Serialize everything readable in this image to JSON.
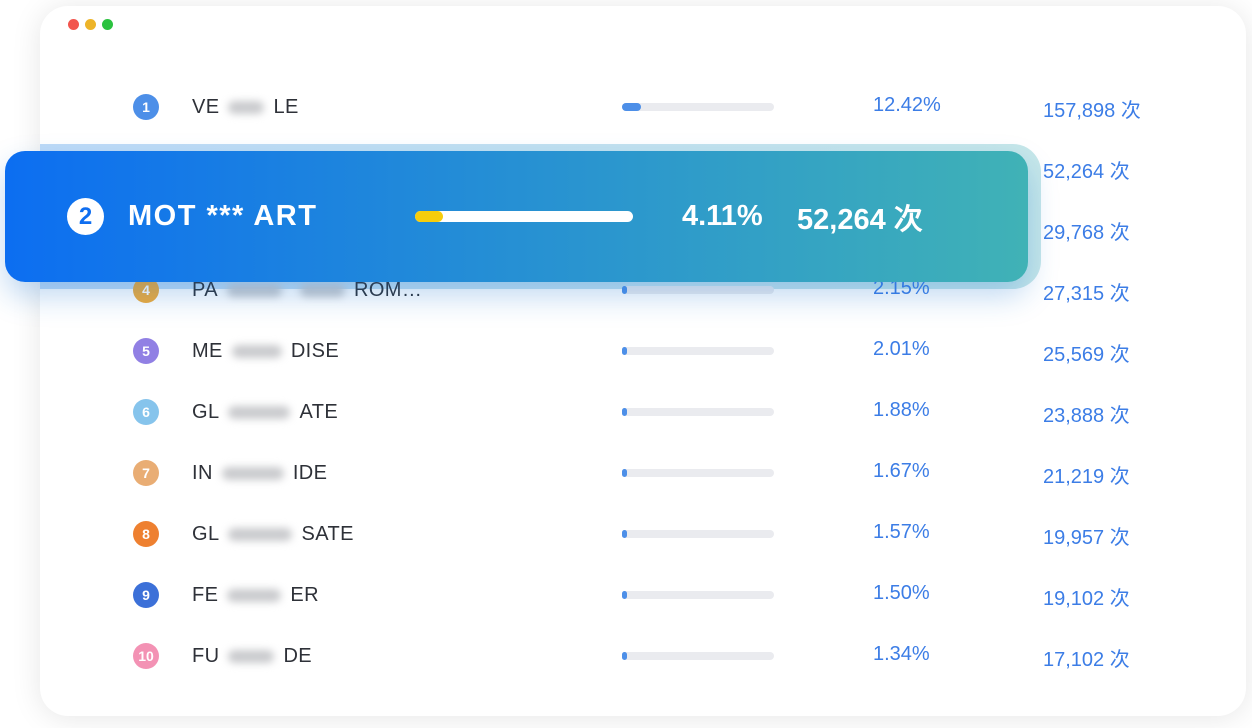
{
  "window": {
    "controls": [
      {
        "name": "close",
        "color": "#F2554D"
      },
      {
        "name": "minimize",
        "color": "#EDB429"
      },
      {
        "name": "maximize",
        "color": "#2BC23F"
      }
    ]
  },
  "list": {
    "rows": [
      {
        "rank": "1",
        "badge_color": "#4D8FE8",
        "label_parts": [
          {
            "t": "VE"
          },
          {
            "b": 36
          },
          {
            "t": "LE"
          }
        ],
        "percent": "12.42%",
        "count": "157,898 次",
        "bar_pct": 12.42
      },
      {
        "rank": "",
        "badge_color": "",
        "label_parts": [],
        "percent": "",
        "count": "52,264 次",
        "bar_pct": 0
      },
      {
        "rank": "",
        "badge_color": "",
        "label_parts": [],
        "percent": "",
        "count": "29,768 次",
        "bar_pct": 0
      },
      {
        "rank": "4",
        "badge_color": "#F0AA38",
        "label_parts": [
          {
            "t": "PA"
          },
          {
            "b": 55
          },
          {
            "b": 45
          },
          {
            "t": "ROM…"
          }
        ],
        "percent": "2.15%",
        "count": "27,315 次",
        "bar_pct": 2.15
      },
      {
        "rank": "5",
        "badge_color": "#9180E4",
        "label_parts": [
          {
            "t": "ME"
          },
          {
            "b": 50
          },
          {
            "t": "DISE"
          }
        ],
        "percent": "2.01%",
        "count": "25,569 次",
        "bar_pct": 2.01
      },
      {
        "rank": "6",
        "badge_color": "#86C4EC",
        "label_parts": [
          {
            "t": "GL"
          },
          {
            "b": 62
          },
          {
            "t": "ATE"
          }
        ],
        "percent": "1.88%",
        "count": "23,888 次",
        "bar_pct": 1.88
      },
      {
        "rank": "7",
        "badge_color": "#E9AD74",
        "label_parts": [
          {
            "t": "IN"
          },
          {
            "b": 62
          },
          {
            "t": "IDE"
          }
        ],
        "percent": "1.67%",
        "count": "21,219 次",
        "bar_pct": 1.67
      },
      {
        "rank": "8",
        "badge_color": "#EE8030",
        "label_parts": [
          {
            "t": "GL"
          },
          {
            "b": 64
          },
          {
            "t": "SATE"
          }
        ],
        "percent": "1.57%",
        "count": "19,957 次",
        "bar_pct": 1.57
      },
      {
        "rank": "9",
        "badge_color": "#3C70D8",
        "label_parts": [
          {
            "t": "FE"
          },
          {
            "b": 54
          },
          {
            "t": "ER"
          }
        ],
        "percent": "1.50%",
        "count": "19,102 次",
        "bar_pct": 1.5
      },
      {
        "rank": "10",
        "badge_color": "#F392B4",
        "label_parts": [
          {
            "t": "FU"
          },
          {
            "b": 46
          },
          {
            "t": "DE"
          }
        ],
        "percent": "1.34%",
        "count": "17,102 次",
        "bar_pct": 1.34
      }
    ]
  },
  "banner": {
    "rank": "2",
    "label": "MOT *** ART",
    "percent": "4.11%",
    "count": "52,264 次",
    "bar_fill_pct": 13
  },
  "colors": {
    "banner_gradient_from": "#0C6EF1",
    "banner_gradient_to": "#40B2B6",
    "halo_gradient_from": "#BEDAF8",
    "halo_gradient_to": "#C6E7E9",
    "banner_bar_track": "#FFFFFF",
    "banner_bar_fill": "#F6CD0C",
    "banner_rank_text": "#0F6EF0",
    "row_bar_track": "#EAEBEF",
    "row_bar_fill": "#4D8FE8",
    "value_text": "#3C7DE6",
    "label_text": "#2E3138"
  }
}
